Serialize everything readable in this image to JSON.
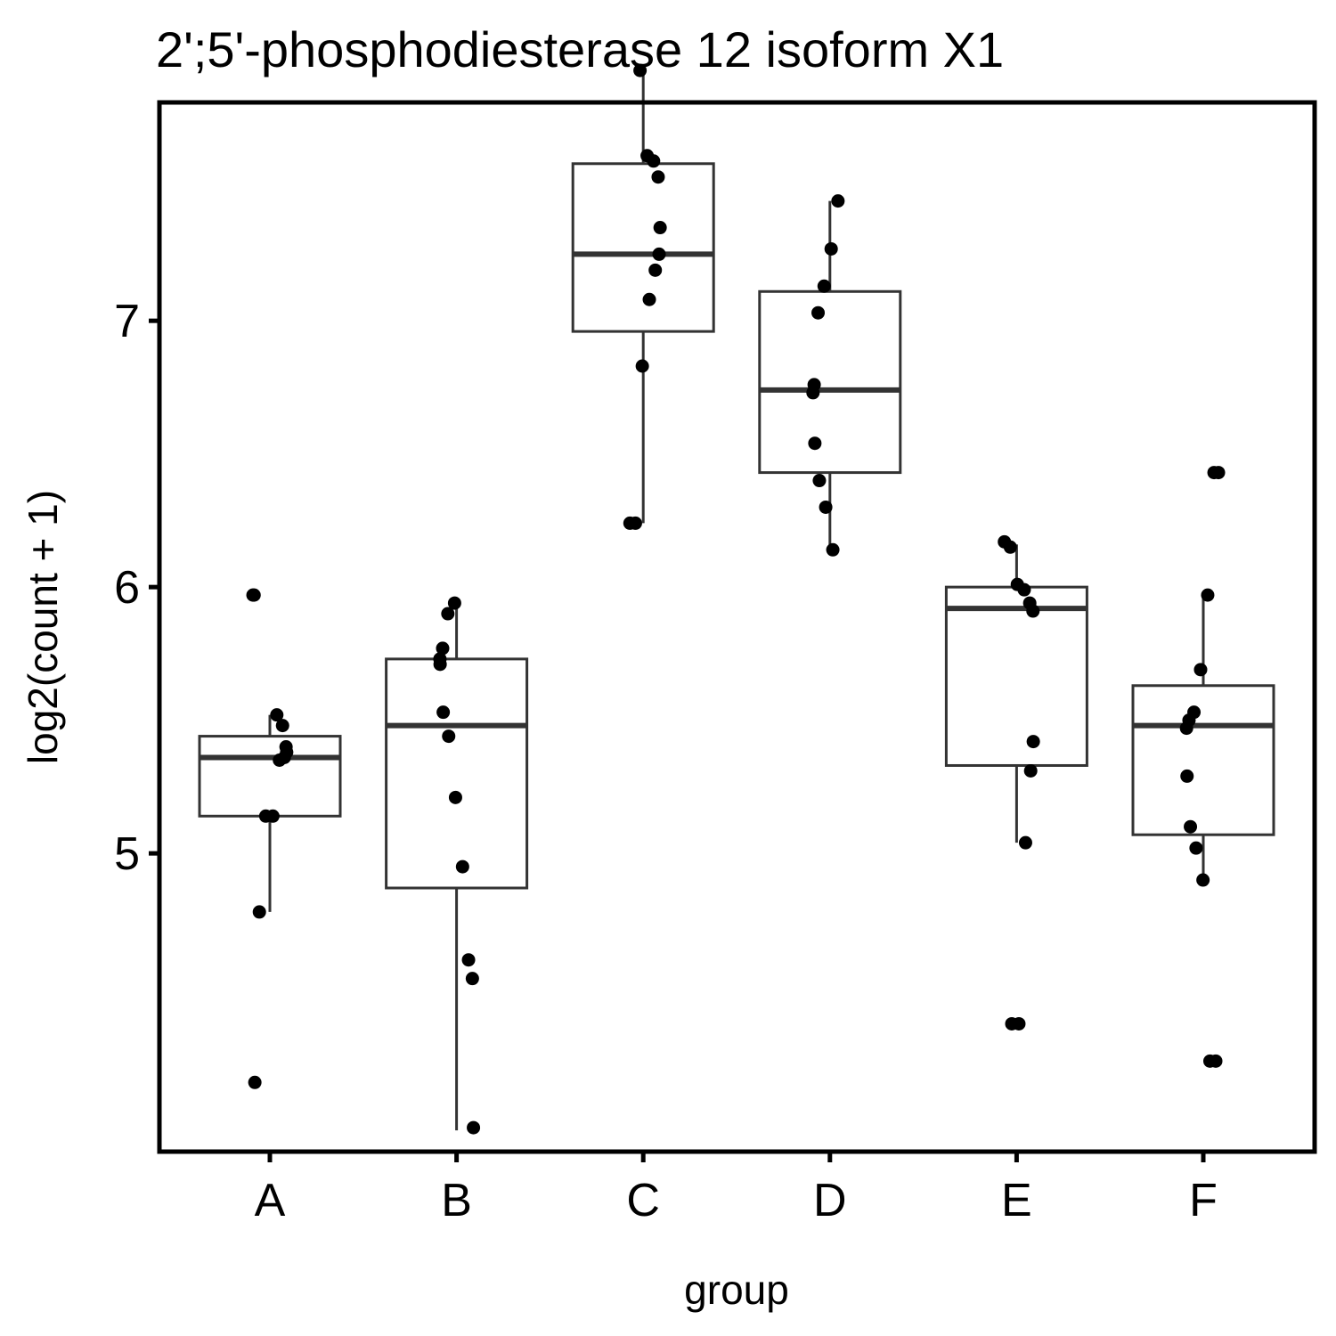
{
  "chart_data": {
    "type": "box",
    "title": "2';5'-phosphodiesterase 12 isoform X1",
    "xlabel": "group",
    "ylabel": "log2(count + 1)",
    "categories": [
      "A",
      "B",
      "C",
      "D",
      "E",
      "F"
    ],
    "yticks": [
      5,
      6,
      7
    ],
    "ylim": [
      3.88,
      7.82
    ],
    "grid": false,
    "legend": "none",
    "boxes": [
      {
        "group": "A",
        "whisker_low": 4.78,
        "q1": 5.14,
        "median": 5.36,
        "q3": 5.44,
        "whisker_high": 5.52
      },
      {
        "group": "B",
        "whisker_low": 3.96,
        "q1": 4.87,
        "median": 5.48,
        "q3": 5.73,
        "whisker_high": 5.94
      },
      {
        "group": "C",
        "whisker_low": 6.24,
        "q1": 6.96,
        "median": 7.25,
        "q3": 7.59,
        "whisker_high": 7.94
      },
      {
        "group": "D",
        "whisker_low": 6.14,
        "q1": 6.43,
        "median": 6.74,
        "q3": 7.11,
        "whisker_high": 7.45
      },
      {
        "group": "E",
        "whisker_low": 5.04,
        "q1": 5.33,
        "median": 5.92,
        "q3": 6.0,
        "whisker_high": 6.16
      },
      {
        "group": "F",
        "whisker_low": 4.92,
        "q1": 5.07,
        "median": 5.48,
        "q3": 5.63,
        "whisker_high": 5.97
      }
    ],
    "points": [
      {
        "group": "A",
        "values": [
          5.52,
          5.48,
          5.4,
          5.38,
          5.36,
          5.35,
          5.14,
          5.14,
          4.78,
          4.14,
          5.97,
          5.97
        ]
      },
      {
        "group": "B",
        "values": [
          5.94,
          5.9,
          5.77,
          5.73,
          5.71,
          5.53,
          5.44,
          5.21,
          4.95,
          4.6,
          4.53,
          3.97
        ]
      },
      {
        "group": "C",
        "values": [
          7.94,
          7.62,
          7.6,
          7.54,
          7.35,
          7.25,
          7.19,
          7.08,
          6.83,
          6.24,
          6.24
        ]
      },
      {
        "group": "D",
        "values": [
          7.45,
          7.27,
          7.13,
          7.03,
          6.76,
          6.73,
          6.54,
          6.4,
          6.3,
          6.14
        ]
      },
      {
        "group": "E",
        "values": [
          6.17,
          6.15,
          6.01,
          5.99,
          5.94,
          5.91,
          5.42,
          5.31,
          5.04,
          4.36,
          4.36
        ]
      },
      {
        "group": "F",
        "values": [
          6.43,
          6.43,
          5.97,
          5.69,
          5.53,
          5.5,
          5.47,
          5.29,
          5.1,
          5.02,
          4.9,
          4.22,
          4.22
        ]
      }
    ]
  }
}
